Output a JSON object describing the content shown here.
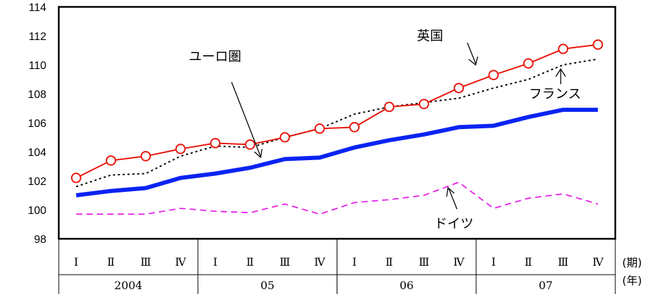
{
  "chart_data": {
    "type": "line",
    "ylim": [
      98,
      114
    ],
    "yticks": [
      98,
      100,
      102,
      104,
      106,
      108,
      110,
      112,
      114
    ],
    "categories": [
      "I",
      "II",
      "III",
      "IV",
      "I",
      "II",
      "III",
      "IV",
      "I",
      "II",
      "III",
      "IV",
      "I",
      "II",
      "III",
      "IV"
    ],
    "category_labels": [
      "Ⅰ",
      "Ⅱ",
      "Ⅲ",
      "Ⅳ",
      "Ⅰ",
      "Ⅱ",
      "Ⅲ",
      "Ⅳ",
      "Ⅰ",
      "Ⅱ",
      "Ⅲ",
      "Ⅳ",
      "Ⅰ",
      "Ⅱ",
      "Ⅲ",
      "Ⅳ"
    ],
    "year_groups": [
      "2004",
      "05",
      "06",
      "07"
    ],
    "x_unit_quarter": "(期)",
    "x_unit_year": "(年)",
    "grid": false,
    "series": [
      {
        "name": "英国",
        "color": "#e8160c",
        "style": "solid-circle-markers",
        "values": [
          102.2,
          103.4,
          103.7,
          104.2,
          104.6,
          104.5,
          105.0,
          105.6,
          105.7,
          107.1,
          107.3,
          108.4,
          109.3,
          110.1,
          111.1,
          111.4
        ]
      },
      {
        "name": "フランス",
        "color": "#000000",
        "style": "dotted",
        "values": [
          101.6,
          102.4,
          102.5,
          103.7,
          104.4,
          104.3,
          105.0,
          105.6,
          106.6,
          107.1,
          107.4,
          107.7,
          108.4,
          109.0,
          110.0,
          110.4
        ]
      },
      {
        "name": "ユーロ圏",
        "color": "#0a23f2",
        "style": "thick-solid",
        "values": [
          101.0,
          101.3,
          101.5,
          102.2,
          102.5,
          102.9,
          103.5,
          103.6,
          104.3,
          104.8,
          105.2,
          105.7,
          105.8,
          106.4,
          106.9,
          106.9
        ]
      },
      {
        "name": "ドイツ",
        "color": "#e61ee6",
        "style": "dashed",
        "values": [
          99.7,
          99.7,
          99.7,
          100.1,
          99.9,
          99.8,
          100.4,
          99.7,
          100.5,
          100.7,
          101.0,
          101.9,
          100.1,
          100.8,
          101.1,
          100.4
        ]
      }
    ]
  }
}
